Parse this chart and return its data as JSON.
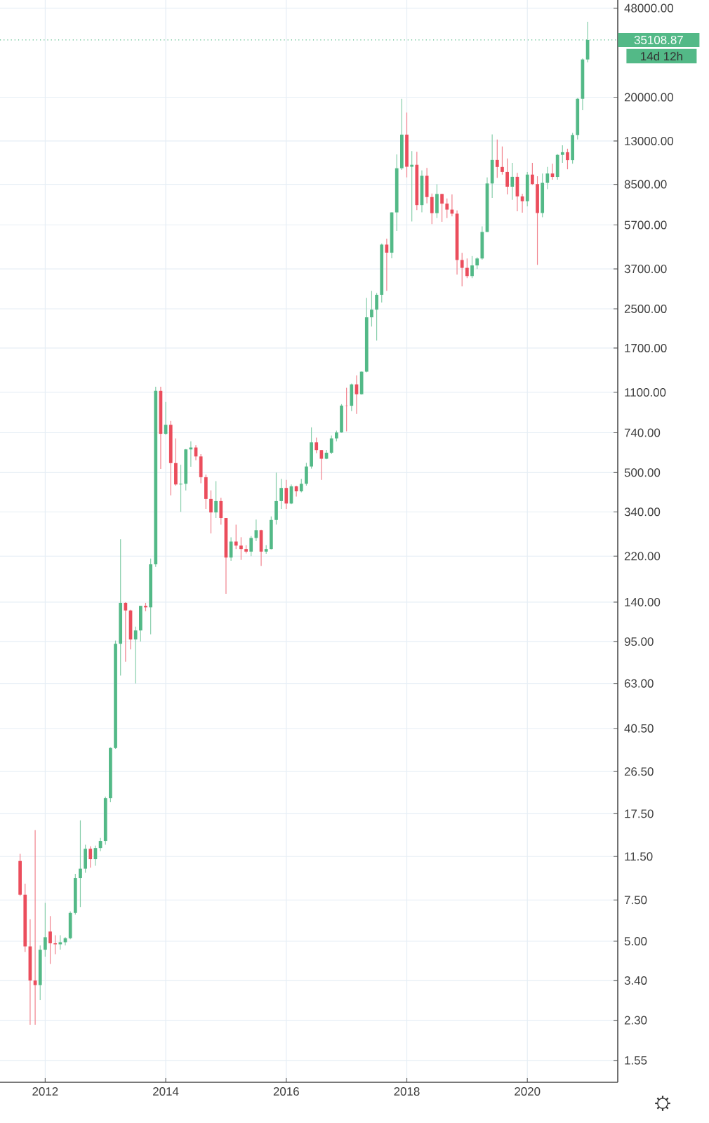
{
  "chart_data": {
    "type": "candlestick",
    "log": "y",
    "grid": true,
    "xlim": [
      "2011-04",
      "2021-07"
    ],
    "xticks": [
      "2012",
      "2014",
      "2016",
      "2018",
      "2020"
    ],
    "ylim": [
      1.25,
      52000
    ],
    "yticks": [
      {
        "value": 1.55,
        "label": "1.55"
      },
      {
        "value": 2.3,
        "label": "2.30"
      },
      {
        "value": 3.4,
        "label": "3.40"
      },
      {
        "value": 5,
        "label": "5.00"
      },
      {
        "value": 7.5,
        "label": "7.50"
      },
      {
        "value": 11.5,
        "label": "11.50"
      },
      {
        "value": 17.5,
        "label": "17.50"
      },
      {
        "value": 26.5,
        "label": "26.50"
      },
      {
        "value": 40.5,
        "label": "40.50"
      },
      {
        "value": 63,
        "label": "63.00"
      },
      {
        "value": 95,
        "label": "95.00"
      },
      {
        "value": 140,
        "label": "140.00"
      },
      {
        "value": 220,
        "label": "220.00"
      },
      {
        "value": 340,
        "label": "340.00"
      },
      {
        "value": 500,
        "label": "500.00"
      },
      {
        "value": 740,
        "label": "740.00"
      },
      {
        "value": 1100,
        "label": "1100.00"
      },
      {
        "value": 1700,
        "label": "1700.00"
      },
      {
        "value": 2500,
        "label": "2500.00"
      },
      {
        "value": 3700,
        "label": "3700.00"
      },
      {
        "value": 5700,
        "label": "5700.00"
      },
      {
        "value": 8500,
        "label": "8500.00"
      },
      {
        "value": 13000,
        "label": "13000.00"
      },
      {
        "value": 20000,
        "label": "20000.00"
      },
      {
        "value": 48000,
        "label": "48000.00"
      }
    ],
    "ref_lines": [
      {
        "axis": "y",
        "value": 35108.87,
        "label": "35108.87",
        "color": "#53b987",
        "line_style": "dotted"
      }
    ],
    "annotations": [
      "14d 12h"
    ],
    "x": [
      "2011-08",
      "2011-09",
      "2011-10",
      "2011-11",
      "2011-12",
      "2012-01",
      "2012-02",
      "2012-03",
      "2012-04",
      "2012-05",
      "2012-06",
      "2012-07",
      "2012-08",
      "2012-09",
      "2012-10",
      "2012-11",
      "2012-12",
      "2013-01",
      "2013-02",
      "2013-03",
      "2013-04",
      "2013-05",
      "2013-06",
      "2013-07",
      "2013-08",
      "2013-09",
      "2013-10",
      "2013-11",
      "2013-12",
      "2014-01",
      "2014-02",
      "2014-03",
      "2014-04",
      "2014-05",
      "2014-06",
      "2014-07",
      "2014-08",
      "2014-09",
      "2014-10",
      "2014-11",
      "2014-12",
      "2015-01",
      "2015-02",
      "2015-03",
      "2015-04",
      "2015-05",
      "2015-06",
      "2015-07",
      "2015-08",
      "2015-09",
      "2015-10",
      "2015-11",
      "2015-12",
      "2016-01",
      "2016-02",
      "2016-03",
      "2016-04",
      "2016-05",
      "2016-06",
      "2016-07",
      "2016-08",
      "2016-09",
      "2016-10",
      "2016-11",
      "2016-12",
      "2017-01",
      "2017-02",
      "2017-03",
      "2017-04",
      "2017-05",
      "2017-06",
      "2017-07",
      "2017-08",
      "2017-09",
      "2017-10",
      "2017-11",
      "2017-12",
      "2018-01",
      "2018-02",
      "2018-03",
      "2018-04",
      "2018-05",
      "2018-06",
      "2018-07",
      "2018-08",
      "2018-09",
      "2018-10",
      "2018-11",
      "2018-12",
      "2019-01",
      "2019-02",
      "2019-03",
      "2019-04",
      "2019-05",
      "2019-06",
      "2019-07",
      "2019-08",
      "2019-09",
      "2019-10",
      "2019-11",
      "2019-12",
      "2020-01",
      "2020-02",
      "2020-03",
      "2020-04",
      "2020-05",
      "2020-06",
      "2020-07",
      "2020-08",
      "2020-09",
      "2020-10",
      "2020-11",
      "2020-12",
      "2021-01"
    ],
    "ohlc": [
      [
        11,
        11.8,
        7.8,
        7.9
      ],
      [
        7.9,
        8.8,
        4.5,
        4.75
      ],
      [
        4.75,
        6.2,
        2.2,
        3.4
      ],
      [
        3.4,
        14.9,
        2.2,
        3.25
      ],
      [
        3.25,
        4.8,
        2.8,
        4.6
      ],
      [
        4.6,
        7.3,
        4.3,
        5.2
      ],
      [
        5.5,
        6.4,
        4.0,
        4.9
      ],
      [
        4.9,
        5.3,
        4.4,
        4.85
      ],
      [
        4.85,
        5.3,
        4.6,
        4.95
      ],
      [
        4.95,
        5.2,
        4.8,
        5.15
      ],
      [
        5.15,
        6.7,
        5.1,
        6.6
      ],
      [
        6.6,
        9.7,
        6.5,
        9.3
      ],
      [
        9.3,
        16.4,
        7.0,
        10.2
      ],
      [
        10.2,
        12.9,
        9.8,
        12.4
      ],
      [
        12.4,
        12.7,
        10.3,
        11.2
      ],
      [
        11.2,
        12.8,
        10.5,
        12.5
      ],
      [
        12.5,
        13.8,
        12.1,
        13.4
      ],
      [
        13.4,
        20.7,
        12.9,
        20.4
      ],
      [
        20.4,
        33.6,
        19.6,
        33.4
      ],
      [
        33.4,
        96,
        33.1,
        93
      ],
      [
        93,
        260,
        68,
        139
      ],
      [
        139,
        140,
        78,
        129
      ],
      [
        129,
        130,
        88,
        97
      ],
      [
        97,
        110,
        63,
        106
      ],
      [
        106,
        135,
        95,
        135
      ],
      [
        135,
        139,
        128,
        133
      ],
      [
        133,
        215,
        102,
        203
      ],
      [
        203,
        1163,
        198,
        1117
      ],
      [
        1117,
        1163,
        519,
        732
      ],
      [
        732,
        1000,
        725,
        800
      ],
      [
        800,
        830,
        400,
        549
      ],
      [
        549,
        700,
        440,
        445
      ],
      [
        445,
        540,
        340,
        448
      ],
      [
        448,
        630,
        420,
        628
      ],
      [
        628,
        680,
        530,
        640
      ],
      [
        640,
        655,
        565,
        586
      ],
      [
        586,
        600,
        450,
        478
      ],
      [
        478,
        490,
        350,
        386
      ],
      [
        386,
        420,
        275,
        338
      ],
      [
        338,
        460,
        320,
        378
      ],
      [
        378,
        390,
        300,
        320
      ],
      [
        320,
        320,
        152,
        217
      ],
      [
        217,
        265,
        210,
        254
      ],
      [
        254,
        300,
        236,
        244
      ],
      [
        244,
        265,
        212,
        236
      ],
      [
        236,
        245,
        226,
        230
      ],
      [
        230,
        268,
        220,
        263
      ],
      [
        263,
        315,
        255,
        284
      ],
      [
        284,
        285,
        200,
        230
      ],
      [
        230,
        245,
        225,
        236
      ],
      [
        236,
        325,
        235,
        314
      ],
      [
        314,
        500,
        300,
        378
      ],
      [
        378,
        470,
        350,
        430
      ],
      [
        430,
        465,
        350,
        369
      ],
      [
        369,
        445,
        367,
        437
      ],
      [
        437,
        440,
        395,
        416
      ],
      [
        416,
        470,
        412,
        448
      ],
      [
        448,
        550,
        440,
        531
      ],
      [
        531,
        780,
        520,
        673
      ],
      [
        673,
        705,
        605,
        624
      ],
      [
        624,
        625,
        465,
        573
      ],
      [
        573,
        625,
        570,
        608
      ],
      [
        608,
        720,
        600,
        700
      ],
      [
        700,
        755,
        680,
        742
      ],
      [
        742,
        980,
        740,
        966
      ],
      [
        966,
        1150,
        750,
        964
      ],
      [
        964,
        1200,
        915,
        1190
      ],
      [
        1190,
        1300,
        890,
        1080
      ],
      [
        1080,
        1350,
        1075,
        1348
      ],
      [
        1348,
        2780,
        1340,
        2300
      ],
      [
        2300,
        2980,
        2100,
        2480
      ],
      [
        2480,
        2920,
        1830,
        2870
      ],
      [
        2870,
        4750,
        2660,
        4700
      ],
      [
        4700,
        4980,
        2980,
        4340
      ],
      [
        4340,
        6450,
        4110,
        6450
      ],
      [
        6450,
        11400,
        5380,
        9950
      ],
      [
        9950,
        19700,
        9800,
        13850
      ],
      [
        13850,
        17200,
        9100,
        10100
      ],
      [
        10100,
        11780,
        5900,
        10300
      ],
      [
        10300,
        11700,
        6600,
        6930
      ],
      [
        6930,
        9750,
        6450,
        9240
      ],
      [
        9240,
        9990,
        7050,
        7500
      ],
      [
        7500,
        7760,
        5750,
        6400
      ],
      [
        6400,
        8500,
        6100,
        7730
      ],
      [
        7730,
        7750,
        5880,
        7030
      ],
      [
        7030,
        7400,
        6100,
        6630
      ],
      [
        6630,
        7700,
        6200,
        6370
      ],
      [
        6370,
        6580,
        3500,
        4040
      ],
      [
        4040,
        4330,
        3120,
        3740
      ],
      [
        3740,
        4100,
        3380,
        3450
      ],
      [
        3450,
        4200,
        3380,
        3830
      ],
      [
        3830,
        4150,
        3700,
        4100
      ],
      [
        4100,
        5620,
        4050,
        5320
      ],
      [
        5320,
        9100,
        5320,
        8570
      ],
      [
        8570,
        13880,
        7440,
        10800
      ],
      [
        10800,
        13200,
        9050,
        10080
      ],
      [
        10080,
        12330,
        9350,
        9600
      ],
      [
        9600,
        10950,
        7700,
        8300
      ],
      [
        8300,
        10500,
        7300,
        9150
      ],
      [
        9150,
        9510,
        6520,
        7550
      ],
      [
        7550,
        7750,
        6430,
        7200
      ],
      [
        7200,
        9600,
        6850,
        9350
      ],
      [
        9350,
        10500,
        8450,
        8520
      ],
      [
        8520,
        9200,
        3850,
        6410
      ],
      [
        6410,
        9450,
        6150,
        8620
      ],
      [
        8620,
        10080,
        8100,
        9450
      ],
      [
        9450,
        10400,
        8900,
        9140
      ],
      [
        9140,
        11450,
        8900,
        11350
      ],
      [
        11350,
        12480,
        10500,
        11650
      ],
      [
        11650,
        12060,
        9850,
        10780
      ],
      [
        10780,
        14100,
        10400,
        13800
      ],
      [
        13800,
        19850,
        13200,
        19700
      ],
      [
        19700,
        29300,
        17600,
        28990
      ],
      [
        28990,
        41950,
        28200,
        35108.87
      ]
    ]
  }
}
